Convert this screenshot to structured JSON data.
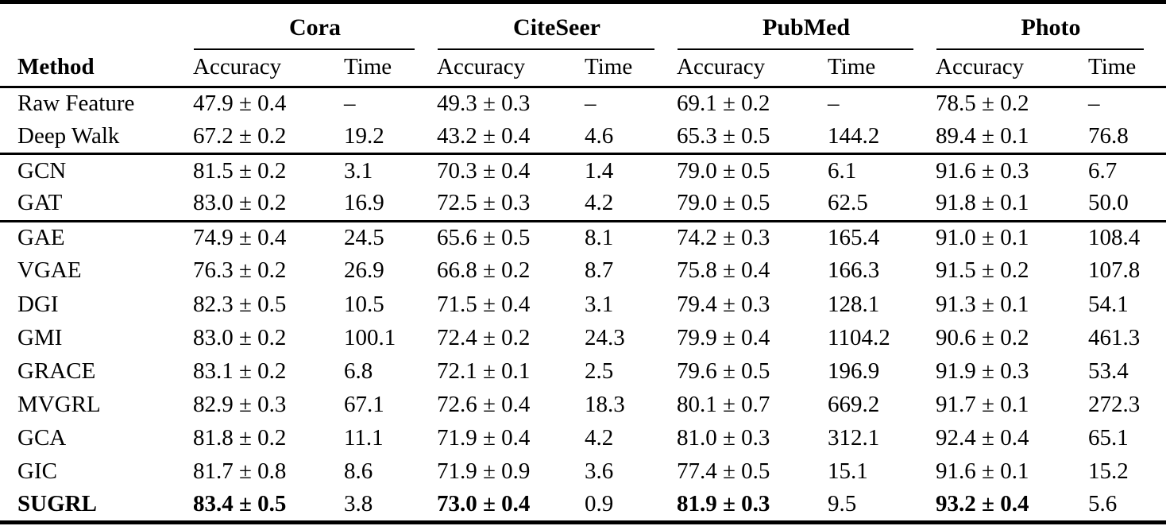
{
  "table": {
    "method_header": "Method",
    "subheaders": {
      "accuracy": "Accuracy",
      "time": "Time"
    },
    "groups": [
      {
        "name": "Cora"
      },
      {
        "name": "CiteSeer"
      },
      {
        "name": "PubMed"
      },
      {
        "name": "Photo"
      }
    ],
    "sections": [
      {
        "rows": [
          {
            "method": "Raw Feature",
            "bold": false,
            "bold_cells": [],
            "cells": [
              "47.9 ± 0.4",
              "–",
              "49.3 ± 0.3",
              "–",
              "69.1 ± 0.2",
              "–",
              "78.5 ± 0.2",
              "–"
            ]
          },
          {
            "method": "Deep Walk",
            "bold": false,
            "bold_cells": [],
            "cells": [
              "67.2 ± 0.2",
              "19.2",
              "43.2 ± 0.4",
              "4.6",
              "65.3 ± 0.5",
              "144.2",
              "89.4 ± 0.1",
              "76.8"
            ]
          }
        ]
      },
      {
        "rows": [
          {
            "method": "GCN",
            "bold": false,
            "bold_cells": [],
            "cells": [
              "81.5 ± 0.2",
              "3.1",
              "70.3 ± 0.4",
              "1.4",
              "79.0 ± 0.5",
              "6.1",
              "91.6 ± 0.3",
              "6.7"
            ]
          },
          {
            "method": "GAT",
            "bold": false,
            "bold_cells": [],
            "cells": [
              "83.0 ± 0.2",
              "16.9",
              "72.5 ± 0.3",
              "4.2",
              "79.0 ± 0.5",
              "62.5",
              "91.8 ± 0.1",
              "50.0"
            ]
          }
        ]
      },
      {
        "rows": [
          {
            "method": "GAE",
            "bold": false,
            "bold_cells": [],
            "cells": [
              "74.9 ± 0.4",
              "24.5",
              "65.6 ± 0.5",
              "8.1",
              "74.2 ± 0.3",
              "165.4",
              "91.0 ± 0.1",
              "108.4"
            ]
          },
          {
            "method": "VGAE",
            "bold": false,
            "bold_cells": [],
            "cells": [
              "76.3 ± 0.2",
              "26.9",
              "66.8 ± 0.2",
              "8.7",
              "75.8 ± 0.4",
              "166.3",
              "91.5 ± 0.2",
              "107.8"
            ]
          },
          {
            "method": "DGI",
            "bold": false,
            "bold_cells": [],
            "cells": [
              "82.3 ± 0.5",
              "10.5",
              "71.5 ± 0.4",
              "3.1",
              "79.4 ± 0.3",
              "128.1",
              "91.3 ± 0.1",
              "54.1"
            ]
          },
          {
            "method": "GMI",
            "bold": false,
            "bold_cells": [],
            "cells": [
              "83.0 ± 0.2",
              "100.1",
              "72.4 ± 0.2",
              "24.3",
              "79.9 ± 0.4",
              "1104.2",
              "90.6 ± 0.2",
              "461.3"
            ]
          },
          {
            "method": "GRACE",
            "bold": false,
            "bold_cells": [],
            "cells": [
              "83.1 ± 0.2",
              "6.8",
              "72.1 ± 0.1",
              "2.5",
              "79.6 ± 0.5",
              "196.9",
              "91.9 ± 0.3",
              "53.4"
            ]
          },
          {
            "method": "MVGRL",
            "bold": false,
            "bold_cells": [],
            "cells": [
              "82.9 ± 0.3",
              "67.1",
              "72.6 ± 0.4",
              "18.3",
              "80.1 ± 0.7",
              "669.2",
              "91.7 ± 0.1",
              "272.3"
            ]
          },
          {
            "method": "GCA",
            "bold": false,
            "bold_cells": [],
            "cells": [
              "81.8 ± 0.2",
              "11.1",
              "71.9 ± 0.4",
              "4.2",
              "81.0 ± 0.3",
              "312.1",
              "92.4 ± 0.4",
              "65.1"
            ]
          },
          {
            "method": "GIC",
            "bold": false,
            "bold_cells": [],
            "cells": [
              "81.7 ± 0.8",
              "8.6",
              "71.9 ± 0.9",
              "3.6",
              "77.4 ± 0.5",
              "15.1",
              "91.6 ± 0.1",
              "15.2"
            ]
          },
          {
            "method": "SUGRL",
            "bold": true,
            "bold_cells": [
              0,
              2,
              4,
              6
            ],
            "cells": [
              "83.4 ± 0.5",
              "3.8",
              "73.0 ± 0.4",
              "0.9",
              "81.9 ± 0.3",
              "9.5",
              "93.2 ± 0.4",
              "5.6"
            ]
          }
        ]
      }
    ]
  }
}
